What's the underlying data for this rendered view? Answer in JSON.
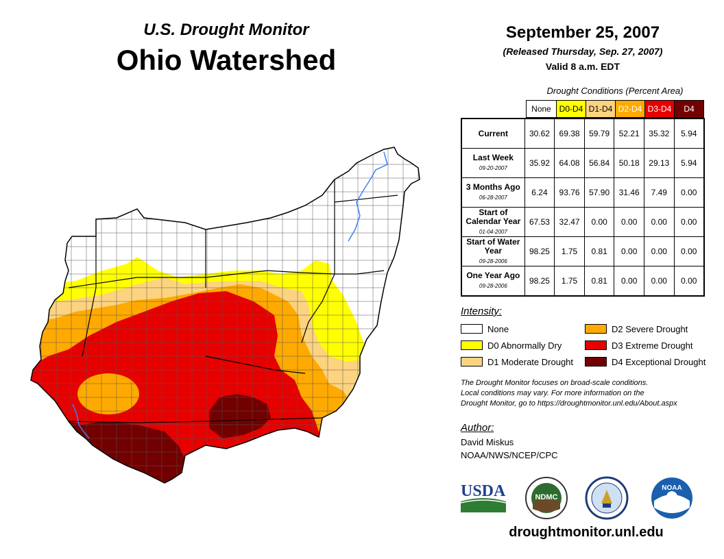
{
  "header": {
    "subtitle": "U.S. Drought Monitor",
    "title": "Ohio Watershed",
    "date": "September 25, 2007",
    "released": "(Released Thursday, Sep. 27, 2007)",
    "valid": "Valid 8 a.m. EDT"
  },
  "table": {
    "caption": "Drought Conditions (Percent Area)",
    "columns": [
      {
        "label": "None",
        "color": "#ffffff",
        "text_color": "#000000"
      },
      {
        "label": "D0-D4",
        "color": "#ffff00",
        "text_color": "#000000"
      },
      {
        "label": "D1-D4",
        "color": "#fcd37f",
        "text_color": "#000000"
      },
      {
        "label": "D2-D4",
        "color": "#ffaa00",
        "text_color": "#ffffff"
      },
      {
        "label": "D3-D4",
        "color": "#e60000",
        "text_color": "#ffffff"
      },
      {
        "label": "D4",
        "color": "#730000",
        "text_color": "#ffffff"
      }
    ],
    "rows": [
      {
        "label": "Current",
        "sub": "",
        "values": [
          "30.62",
          "69.38",
          "59.79",
          "52.21",
          "35.32",
          "5.94"
        ]
      },
      {
        "label": "Last Week",
        "sub": "09-20-2007",
        "values": [
          "35.92",
          "64.08",
          "56.84",
          "50.18",
          "29.13",
          "5.94"
        ]
      },
      {
        "label": "3 Months Ago",
        "sub": "06-28-2007",
        "values": [
          "6.24",
          "93.76",
          "57.90",
          "31.46",
          "7.49",
          "0.00"
        ]
      },
      {
        "label": "Start of Calendar Year",
        "sub": "01-04-2007",
        "values": [
          "67.53",
          "32.47",
          "0.00",
          "0.00",
          "0.00",
          "0.00"
        ]
      },
      {
        "label": "Start of Water Year",
        "sub": "09-28-2006",
        "values": [
          "98.25",
          "1.75",
          "0.81",
          "0.00",
          "0.00",
          "0.00"
        ]
      },
      {
        "label": "One Year Ago",
        "sub": "09-28-2006",
        "values": [
          "98.25",
          "1.75",
          "0.81",
          "0.00",
          "0.00",
          "0.00"
        ]
      }
    ]
  },
  "legend": {
    "title": "Intensity:",
    "items": [
      {
        "label": "None",
        "color": "#ffffff"
      },
      {
        "label": "D0 Abnormally Dry",
        "color": "#ffff00"
      },
      {
        "label": "D1 Moderate Drought",
        "color": "#fcd37f"
      },
      {
        "label": "D2 Severe Drought",
        "color": "#ffaa00"
      },
      {
        "label": "D3 Extreme Drought",
        "color": "#e60000"
      },
      {
        "label": "D4 Exceptional Drought",
        "color": "#730000"
      }
    ]
  },
  "note": {
    "line1": "The Drought Monitor focuses on broad-scale conditions.",
    "line2": "Local conditions may vary. For more information on the",
    "line3": "Drought Monitor, go to https://droughtmonitor.unl.edu/About.aspx"
  },
  "author": {
    "title": "Author:",
    "name": "David Miskus",
    "org": "NOAA/NWS/NCEP/CPC"
  },
  "logos": {
    "usda": "USDA",
    "ndmc": "NDMC",
    "noaa": "NOAA"
  },
  "footer": {
    "url": "droughtmonitor.unl.edu"
  }
}
